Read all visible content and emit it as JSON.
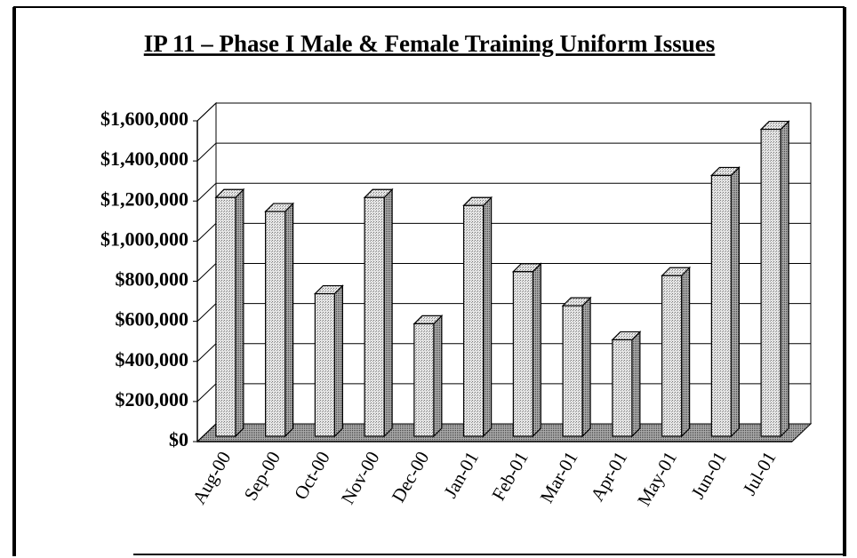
{
  "chart_data": {
    "type": "bar",
    "title": "IP 11 – Phase I Male & Female Training Uniform Issues",
    "categories": [
      "Aug-00",
      "Sep-00",
      "Oct-00",
      "Nov-00",
      "Dec-00",
      "Jan-01",
      "Feb-01",
      "Mar-01",
      "Apr-01",
      "May-01",
      "Jun-01",
      "Jul-01"
    ],
    "values": [
      1200000,
      1130000,
      720000,
      1200000,
      570000,
      1160000,
      830000,
      660000,
      490000,
      810000,
      1310000,
      1540000
    ],
    "color": "#d4d4d4",
    "ylim": [
      0,
      1600000
    ],
    "yticks": [
      {
        "value": 0,
        "label": "$0"
      },
      {
        "value": 200000,
        "label": "$200,000"
      },
      {
        "value": 400000,
        "label": "$400,000"
      },
      {
        "value": 600000,
        "label": "$600,000"
      },
      {
        "value": 800000,
        "label": "$800,000"
      },
      {
        "value": 1000000,
        "label": "$1,000,000"
      },
      {
        "value": 1200000,
        "label": "$1,200,000"
      },
      {
        "value": 1400000,
        "label": "$1,400,000"
      },
      {
        "value": 1600000,
        "label": "$1,600,000"
      }
    ],
    "grid": true
  }
}
